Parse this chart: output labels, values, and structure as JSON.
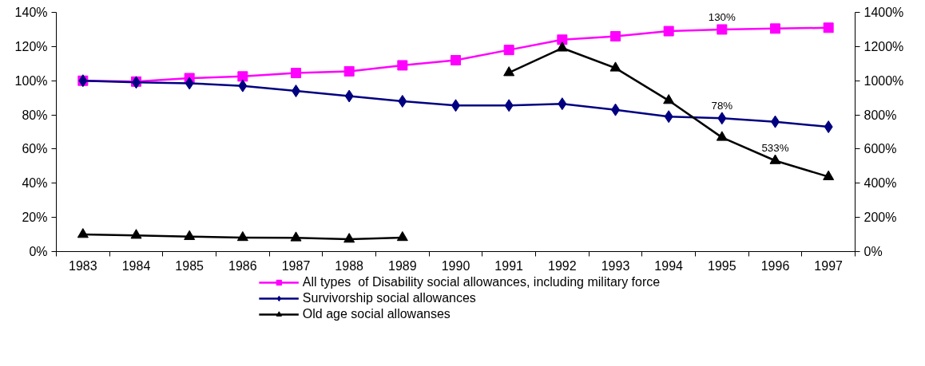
{
  "chart_data": {
    "type": "line",
    "categories": [
      "1983",
      "1984",
      "1985",
      "1986",
      "1987",
      "1988",
      "1989",
      "1990",
      "1991",
      "1992",
      "1993",
      "1994",
      "1995",
      "1996",
      "1997"
    ],
    "series": [
      {
        "name": "All types  of Disability social allowances, including military force",
        "color": "#ff00ff",
        "marker": "square",
        "values": [
          100,
          99.5,
          101.5,
          102.5,
          104.5,
          105.5,
          109,
          112,
          118,
          124,
          126,
          129,
          130,
          130.5,
          131
        ]
      },
      {
        "name": "Survivorship social allowances",
        "color": "#000080",
        "marker": "diamond",
        "values": [
          100,
          99,
          98.5,
          97,
          94,
          91,
          88,
          85.5,
          85.5,
          86.5,
          83,
          79,
          78,
          76,
          73
        ]
      },
      {
        "name": "Old age social allowanses",
        "color": "#000000",
        "marker": "triangle",
        "axis": "y2",
        "values": [
          100,
          95,
          88,
          82,
          80,
          72,
          82,
          null,
          1047,
          1191,
          1074,
          884,
          668,
          532,
          438
        ]
      }
    ],
    "ylim": [
      0,
      140
    ],
    "yticks": [
      {
        "value": 0,
        "label": "0%"
      },
      {
        "value": 20,
        "label": "20%"
      },
      {
        "value": 40,
        "label": "40%"
      },
      {
        "value": 60,
        "label": "60%"
      },
      {
        "value": 80,
        "label": "80%"
      },
      {
        "value": 100,
        "label": "100%"
      },
      {
        "value": 120,
        "label": "120%"
      },
      {
        "value": 140,
        "label": "140%"
      }
    ],
    "y2lim": [
      0,
      1400
    ],
    "y2ticks": [
      {
        "value": 0,
        "label": "0%"
      },
      {
        "value": 200,
        "label": "200%"
      },
      {
        "value": 400,
        "label": "400%"
      },
      {
        "value": 600,
        "label": "600%"
      },
      {
        "value": 800,
        "label": "800%"
      },
      {
        "value": 1000,
        "label": "1000%"
      },
      {
        "value": 1200,
        "label": "1200%"
      },
      {
        "value": 1400,
        "label": "1400%"
      }
    ],
    "annotations": [
      {
        "text": "130%",
        "x": "1995",
        "y": 130
      },
      {
        "text": "78%",
        "x": "1995",
        "y": 78
      },
      {
        "text": "533%",
        "x": "1996",
        "y": 53.3
      }
    ],
    "grid": false,
    "legend": "bottom",
    "line_style": "solid"
  }
}
